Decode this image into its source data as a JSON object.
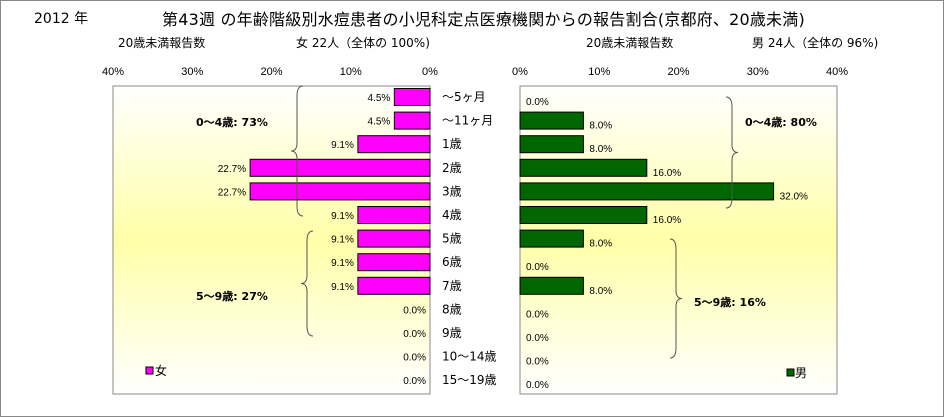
{
  "title_year": "2012 年",
  "title": "第43週 の年齢階級別水痘患者の小児科定点医療機関からの報告割合(京都府、20歳未満)",
  "female_subtitle_left": "20歳未満報告数",
  "female_subtitle_right": "女 22人（全体の 100%)",
  "male_subtitle_left": "20歳未満報告数",
  "male_subtitle_right": "男 24人（全体の 96%)",
  "chart_data": {
    "type": "bar",
    "categories": [
      "〜5ヶ月",
      "〜11ヶ月",
      "1歳",
      "2歳",
      "3歳",
      "4歳",
      "5歳",
      "6歳",
      "7歳",
      "8歳",
      "9歳",
      "10〜14歳",
      "15〜19歳"
    ],
    "xlim": [
      0,
      40
    ],
    "x_ticks": [
      "0%",
      "10%",
      "20%",
      "30%",
      "40%"
    ],
    "series": [
      {
        "name": "女",
        "color": "#ff00ff",
        "values": [
          4.5,
          4.5,
          9.1,
          22.7,
          22.7,
          9.1,
          9.1,
          9.1,
          9.1,
          0.0,
          0.0,
          0.0,
          0.0
        ],
        "labels": [
          "4.5%",
          "4.5%",
          "9.1%",
          "22.7%",
          "22.7%",
          "9.1%",
          "9.1%",
          "9.1%",
          "9.1%",
          "0.0%",
          "0.0%",
          "0.0%",
          "0.0%"
        ],
        "annotations": [
          "0〜4歳: 73%",
          "5〜9歳: 27%"
        ]
      },
      {
        "name": "男",
        "color": "#006600",
        "values": [
          0.0,
          8.0,
          8.0,
          16.0,
          32.0,
          16.0,
          8.0,
          0.0,
          8.0,
          0.0,
          0.0,
          0.0,
          0.0
        ],
        "labels": [
          "0.0%",
          "8.0%",
          "8.0%",
          "16.0%",
          "32.0%",
          "16.0%",
          "8.0%",
          "0.0%",
          "8.0%",
          "0.0%",
          "0.0%",
          "0.0%",
          "0.0%"
        ],
        "annotations": [
          "0〜4歳: 80%",
          "5〜9歳: 16%"
        ]
      }
    ],
    "grid": false,
    "legend_position": "bottom"
  }
}
